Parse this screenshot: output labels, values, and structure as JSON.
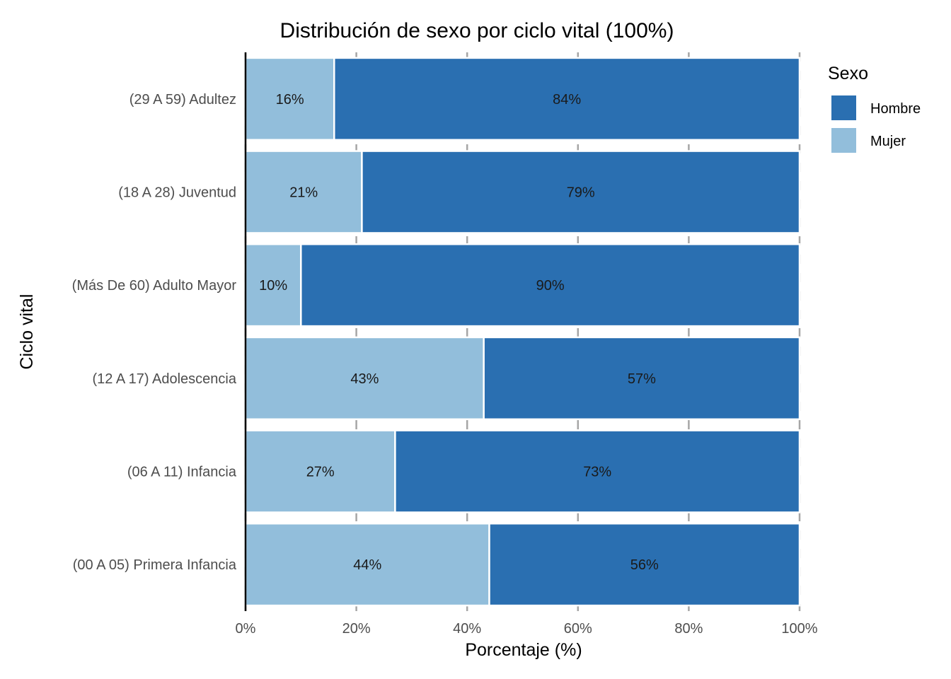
{
  "chart_data": {
    "type": "bar",
    "orientation": "horizontal",
    "stacked": "percent",
    "title": "Distribución de sexo por ciclo vital (100%)",
    "xlabel": "Porcentaje (%)",
    "ylabel": "Ciclo vital",
    "xlim": [
      0,
      100
    ],
    "x_ticks": [
      "0%",
      "20%",
      "40%",
      "60%",
      "80%",
      "100%"
    ],
    "categories": [
      "(29 A 59) Adultez",
      "(18 A 28) Juventud",
      "(Más De 60) Adulto Mayor",
      "(12 A 17) Adolescencia",
      "(06 A 11) Infancia",
      "(00 A 05) Primera Infancia"
    ],
    "series": [
      {
        "name": "Mujer",
        "color": "#92BEDB",
        "values": [
          16,
          21,
          10,
          43,
          27,
          44
        ],
        "labels": [
          "16%",
          "21%",
          "10%",
          "43%",
          "27%",
          "44%"
        ]
      },
      {
        "name": "Hombre",
        "color": "#2A6FB1",
        "values": [
          84,
          79,
          90,
          57,
          73,
          56
        ],
        "labels": [
          "84%",
          "79%",
          "90%",
          "57%",
          "73%",
          "56%"
        ]
      }
    ],
    "legend": {
      "title": "Sexo",
      "position": "right",
      "items": [
        {
          "name": "Hombre",
          "color": "#2A6FB1"
        },
        {
          "name": "Mujer",
          "color": "#92BEDB"
        }
      ]
    },
    "grid": true
  }
}
